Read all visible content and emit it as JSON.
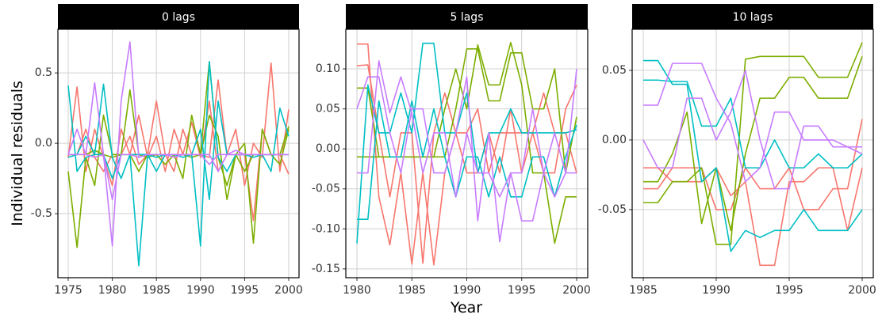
{
  "xlabel": "Year",
  "ylabel": "Individual residuals",
  "chart_data": [
    {
      "type": "line",
      "title": "0 lags",
      "x": [
        1975,
        1976,
        1977,
        1978,
        1979,
        1980,
        1981,
        1982,
        1983,
        1984,
        1985,
        1986,
        1987,
        1988,
        1989,
        1990,
        1991,
        1992,
        1993,
        1994,
        1995,
        1996,
        1997,
        1998,
        1999,
        2000
      ],
      "xlim": [
        1973.83,
        2001.17
      ],
      "xticks": [
        1975,
        1980,
        1985,
        1990,
        1995,
        2000
      ],
      "ylim": [
        -0.955,
        0.81
      ],
      "yticks": [
        -0.5,
        {
          "value": 0,
          "label": "0.0"
        },
        0.5
      ],
      "grid": true,
      "series": [
        {
          "color": "#F8766D",
          "values": [
            -0.1,
            0.4,
            -0.2,
            0.1,
            -0.1,
            -0.3,
            0.1,
            -0.08,
            0.2,
            -0.1,
            0.05,
            -0.2,
            0.1,
            -0.08,
            0.15,
            -0.1,
            0.3,
            -0.2,
            -0.08,
            0.1,
            -0.3,
            0.0,
            -0.1,
            0.57,
            -0.2,
            0.24
          ]
        },
        {
          "color": "#F8766D",
          "values": [
            -0.08,
            -0.08,
            0.1,
            -0.1,
            -0.2,
            -0.08,
            -0.08,
            0.05,
            -0.15,
            -0.08,
            0.3,
            -0.08,
            -0.2,
            0.1,
            -0.08,
            -0.08,
            -0.1,
            0.45,
            -0.08,
            -0.08,
            -0.08,
            -0.55,
            0.1,
            -0.08,
            -0.08,
            -0.22
          ]
        },
        {
          "color": "#7CAE00",
          "values": [
            -0.2,
            -0.74,
            -0.1,
            -0.3,
            0.2,
            -0.08,
            -0.08,
            0.38,
            -0.08,
            -0.1,
            -0.08,
            -0.15,
            -0.08,
            -0.25,
            0.2,
            -0.08,
            0.58,
            -0.1,
            -0.3,
            -0.08,
            0.0,
            -0.71,
            0.1,
            -0.08,
            -0.08,
            0.12
          ]
        },
        {
          "color": "#7CAE00",
          "values": [
            -0.08,
            -0.08,
            -0.08,
            -0.05,
            -0.08,
            -0.1,
            -0.08,
            -0.08,
            -0.2,
            -0.08,
            -0.08,
            -0.08,
            -0.08,
            -0.08,
            -0.1,
            -0.08,
            0.2,
            0.05,
            -0.4,
            -0.08,
            -0.2,
            -0.08,
            -0.08,
            -0.08,
            -0.15,
            0.1
          ]
        },
        {
          "color": "#00BFC4",
          "values": [
            0.41,
            -0.2,
            -0.1,
            -0.08,
            0.42,
            -0.1,
            -0.25,
            -0.08,
            -0.87,
            -0.08,
            -0.1,
            -0.08,
            -0.08,
            -0.1,
            -0.08,
            -0.73,
            0.58,
            -0.1,
            -0.2,
            -0.08,
            -0.08,
            -0.1,
            -0.08,
            -0.2,
            0.25,
            0.05
          ]
        },
        {
          "color": "#00BFC4",
          "values": [
            -0.1,
            -0.08,
            0.05,
            -0.08,
            -0.08,
            -0.25,
            -0.08,
            -0.08,
            -0.08,
            -0.08,
            -0.2,
            -0.08,
            -0.08,
            -0.08,
            -0.08,
            0.1,
            -0.4,
            0.3,
            -0.08,
            -0.08,
            -0.08,
            -0.08,
            -0.08,
            -0.08,
            -0.08,
            -0.08
          ]
        },
        {
          "color": "#C77CFF",
          "values": [
            -0.08,
            -0.08,
            -0.08,
            0.43,
            -0.08,
            -0.73,
            0.3,
            0.72,
            -0.1,
            -0.08,
            -0.08,
            -0.08,
            -0.1,
            -0.08,
            -0.08,
            -0.08,
            -0.08,
            -0.2,
            -0.08,
            -0.08,
            -0.08,
            -0.08,
            -0.08,
            -0.08,
            -0.08,
            -0.08
          ]
        },
        {
          "color": "#C77CFF",
          "values": [
            -0.08,
            0.1,
            -0.08,
            -0.1,
            -0.08,
            -0.4,
            -0.08,
            -0.08,
            -0.1,
            -0.08,
            -0.08,
            -0.08,
            -0.08,
            -0.08,
            -0.08,
            -0.08,
            -0.15,
            -0.08,
            -0.08,
            -0.05,
            -0.08,
            -0.08,
            -0.08,
            -0.08,
            -0.08,
            -0.08
          ]
        }
      ]
    },
    {
      "type": "line",
      "title": "5 lags",
      "x": [
        1980,
        1981,
        1982,
        1983,
        1984,
        1985,
        1986,
        1987,
        1988,
        1989,
        1990,
        1991,
        1992,
        1993,
        1994,
        1995,
        1996,
        1997,
        1998,
        1999,
        2000
      ],
      "xlim": [
        1978.99,
        2001.01
      ],
      "xticks": [
        1980,
        1985,
        1990,
        1995,
        2000
      ],
      "ylim": [
        -0.161,
        0.1495
      ],
      "yticks": [
        -0.15,
        {
          "value": -0.1,
          "label": "-0.10"
        },
        -0.05,
        {
          "value": 0,
          "label": "0.00"
        },
        0.05,
        {
          "value": 0.1,
          "label": "0.10"
        }
      ],
      "grid": true,
      "series": [
        {
          "color": "#F8766D",
          "values": [
            0.131,
            0.131,
            -0.06,
            -0.12,
            -0.03,
            -0.144,
            -0.03,
            -0.145,
            -0.03,
            0.02,
            -0.03,
            -0.03,
            0.02,
            -0.03,
            0.05,
            -0.03,
            0.02,
            -0.03,
            -0.03,
            0.05,
            0.08
          ]
        },
        {
          "color": "#F8766D",
          "values": [
            0.104,
            0.105,
            0.02,
            -0.06,
            0.02,
            0.02,
            -0.143,
            0.02,
            0.07,
            0.02,
            0.02,
            0.05,
            -0.03,
            0.02,
            0.02,
            0.02,
            0.02,
            0.07,
            0.02,
            0.02,
            -0.03
          ]
        },
        {
          "color": "#7CAE00",
          "values": [
            0.076,
            0.076,
            -0.01,
            -0.01,
            -0.01,
            -0.01,
            -0.01,
            -0.01,
            0.05,
            0.1,
            0.05,
            0.13,
            0.08,
            0.08,
            0.133,
            0.08,
            -0.03,
            -0.03,
            -0.118,
            -0.06,
            -0.06
          ]
        },
        {
          "color": "#7CAE00",
          "values": [
            -0.01,
            -0.01,
            -0.01,
            -0.01,
            -0.01,
            -0.01,
            -0.01,
            -0.01,
            -0.01,
            0.05,
            0.125,
            0.125,
            0.06,
            0.06,
            0.12,
            0.12,
            0.05,
            0.05,
            0.1,
            -0.03,
            0.04
          ]
        },
        {
          "color": "#00BFC4",
          "values": [
            -0.118,
            0.08,
            0.02,
            0.02,
            0.07,
            0.02,
            0.132,
            0.132,
            0.02,
            0.02,
            0.07,
            -0.03,
            0.02,
            0.02,
            0.05,
            0.02,
            0.02,
            0.02,
            0.02,
            0.02,
            0.024
          ]
        },
        {
          "color": "#00BFC4",
          "values": [
            -0.088,
            -0.088,
            0.06,
            -0.01,
            -0.01,
            0.06,
            -0.01,
            0.05,
            -0.01,
            -0.06,
            -0.01,
            -0.01,
            -0.06,
            -0.01,
            -0.06,
            -0.06,
            -0.01,
            -0.01,
            -0.06,
            -0.01,
            0.03
          ]
        },
        {
          "color": "#C77CFF",
          "values": [
            0.05,
            0.09,
            0.09,
            0.02,
            -0.03,
            0.05,
            0.05,
            -0.03,
            -0.03,
            0.02,
            0.09,
            -0.09,
            0.02,
            -0.116,
            -0.03,
            -0.03,
            0.05,
            -0.03,
            0.02,
            -0.03,
            0.1
          ]
        },
        {
          "color": "#C77CFF",
          "values": [
            -0.03,
            -0.03,
            0.11,
            0.045,
            0.09,
            0.045,
            -0.03,
            0.02,
            0.02,
            -0.06,
            0.02,
            -0.03,
            -0.03,
            -0.06,
            -0.03,
            -0.09,
            -0.09,
            -0.03,
            -0.06,
            -0.03,
            -0.03
          ]
        }
      ]
    },
    {
      "type": "line",
      "title": "10 lags",
      "x": [
        1985,
        1986,
        1987,
        1988,
        1989,
        1990,
        1991,
        1992,
        1993,
        1994,
        1995,
        1996,
        1997,
        1998,
        1999,
        2000
      ],
      "xlim": [
        1984.24,
        2000.76
      ],
      "xticks": [
        1985,
        1990,
        1995,
        2000
      ],
      "ylim": [
        -0.0989,
        0.0795
      ],
      "yticks": [
        -0.05,
        {
          "value": 0,
          "label": "0.00"
        },
        0.05
      ],
      "grid": true,
      "series": [
        {
          "color": "#F8766D",
          "values": [
            -0.02,
            -0.02,
            -0.03,
            -0.03,
            -0.03,
            -0.02,
            -0.04,
            -0.03,
            -0.09,
            -0.09,
            -0.03,
            -0.03,
            -0.02,
            -0.02,
            -0.065,
            -0.02
          ]
        },
        {
          "color": "#F8766D",
          "values": [
            -0.035,
            -0.035,
            -0.02,
            -0.02,
            -0.02,
            -0.05,
            -0.05,
            -0.02,
            -0.035,
            -0.035,
            -0.02,
            -0.05,
            -0.05,
            -0.035,
            -0.035,
            0.015
          ]
        },
        {
          "color": "#7CAE00",
          "values": [
            -0.045,
            -0.045,
            -0.03,
            -0.03,
            -0.02,
            -0.075,
            -0.075,
            0.058,
            0.06,
            0.06,
            0.06,
            0.06,
            0.045,
            0.045,
            0.045,
            0.07
          ]
        },
        {
          "color": "#7CAE00",
          "values": [
            -0.03,
            -0.03,
            -0.01,
            0.02,
            -0.06,
            -0.02,
            -0.065,
            -0.01,
            0.03,
            0.03,
            0.045,
            0.045,
            0.03,
            0.03,
            0.03,
            0.06
          ]
        },
        {
          "color": "#00BFC4",
          "values": [
            0.057,
            0.057,
            0.04,
            0.04,
            -0.03,
            -0.02,
            -0.08,
            -0.065,
            -0.07,
            -0.065,
            -0.065,
            -0.05,
            -0.065,
            -0.065,
            -0.065,
            -0.05
          ]
        },
        {
          "color": "#00BFC4",
          "values": [
            0.043,
            0.043,
            0.042,
            0.042,
            0.01,
            0.01,
            0.03,
            -0.02,
            -0.02,
            0.0,
            -0.02,
            -0.02,
            -0.01,
            -0.02,
            -0.02,
            -0.01
          ]
        },
        {
          "color": "#C77CFF",
          "values": [
            0.025,
            0.025,
            0.055,
            0.055,
            0.055,
            0.03,
            0.012,
            -0.03,
            -0.02,
            0.02,
            0.02,
            0.0,
            0.0,
            0.0,
            -0.005,
            -0.005
          ]
        },
        {
          "color": "#C77CFF",
          "values": [
            0.0,
            -0.02,
            -0.02,
            0.03,
            0.03,
            0.0,
            0.02,
            0.05,
            0.0,
            -0.035,
            -0.035,
            0.01,
            0.01,
            -0.005,
            -0.005,
            -0.01
          ]
        }
      ]
    }
  ]
}
